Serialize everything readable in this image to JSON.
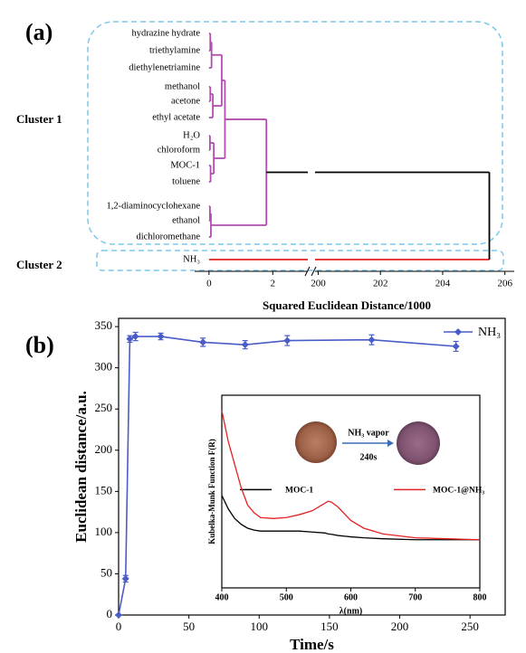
{
  "chart_data": [
    {
      "type": "dendrogram",
      "label": "(a)",
      "xlabel": "Squared Euclidean Distance/1000",
      "leaves": [
        "hydrazine hydrate",
        "triethylamine",
        "diethylenetriamine",
        "methanol",
        "acetone",
        "ethyl acetate",
        "H₂O",
        "chloroform",
        "MOC-1",
        "toluene",
        "1,2-diaminocyclohexane",
        "ethanol",
        "dichloromethane",
        "NH₃"
      ],
      "leaf_colors": [
        "#b04fb0",
        "#b04fb0",
        "#b04fb0",
        "#b04fb0",
        "#b04fb0",
        "#b04fb0",
        "#b04fb0",
        "#b04fb0",
        "#b04fb0",
        "#b04fb0",
        "#b04fb0",
        "#b04fb0",
        "#b04fb0",
        "#e52222"
      ],
      "clusters": [
        "Cluster 1",
        "Cluster 2"
      ],
      "merges": [
        {
          "pair": [
            0,
            1
          ],
          "distance": 0.04,
          "color": "#b04fb0"
        },
        {
          "pair": [
            14,
            2
          ],
          "distance": 0.08,
          "color": "#b04fb0"
        },
        {
          "pair": [
            3,
            4
          ],
          "distance": 0.04,
          "color": "#b04fb0"
        },
        {
          "pair": [
            16,
            5
          ],
          "distance": 0.12,
          "color": "#b04fb0"
        },
        {
          "pair": [
            15,
            17
          ],
          "distance": 0.4,
          "color": "#b04fb0"
        },
        {
          "pair": [
            6,
            7
          ],
          "distance": 0.03,
          "color": "#b04fb0"
        },
        {
          "pair": [
            8,
            9
          ],
          "distance": 0.05,
          "color": "#b04fb0"
        },
        {
          "pair": [
            19,
            20
          ],
          "distance": 0.15,
          "color": "#b04fb0"
        },
        {
          "pair": [
            18,
            21
          ],
          "distance": 0.5,
          "color": "#b04fb0"
        },
        {
          "pair": [
            10,
            11
          ],
          "distance": 0.03,
          "color": "#b04fb0"
        },
        {
          "pair": [
            23,
            12
          ],
          "distance": 0.06,
          "color": "#b04fb0"
        },
        {
          "pair": [
            22,
            24
          ],
          "distance": 1.8,
          "color": "#b04fb0"
        },
        {
          "pair": [
            25,
            13
          ],
          "distance": 205.5,
          "color": "#000000"
        }
      ],
      "xlim": [
        -0.45,
        206.3
      ],
      "xbreak": [
        3.1,
        199.9
      ],
      "xticks": [
        0,
        2,
        200,
        202,
        204,
        206
      ]
    },
    {
      "type": "line",
      "label": "(b)",
      "xlabel": "Time/s",
      "ylabel": "Euclidean distance/a.u.",
      "x": [
        0,
        5,
        8,
        12,
        30,
        60,
        90,
        120,
        180,
        240
      ],
      "series": [
        {
          "name": "NH₃",
          "color": "#4a5cc7",
          "values": [
            0,
            44,
            335,
            338,
            338,
            331,
            328,
            333,
            334,
            326
          ],
          "errors": [
            0,
            4,
            4,
            5,
            4,
            5,
            5,
            6,
            6,
            6
          ]
        }
      ],
      "markers": "diamond",
      "legend": "upper right",
      "xlim": [
        0,
        275
      ],
      "ylim": [
        0,
        360
      ],
      "xticks": [
        0,
        50,
        100,
        150,
        200,
        250
      ],
      "yticks": [
        0,
        50,
        100,
        150,
        200,
        250,
        300,
        350
      ]
    },
    {
      "type": "line",
      "xlabel": "λ(nm)",
      "ylabel": "Kubelka-Munk Function F(R)",
      "x": [
        400,
        410,
        420,
        430,
        440,
        450,
        460,
        480,
        500,
        520,
        540,
        560,
        565,
        570,
        580,
        600,
        620,
        650,
        700,
        750,
        800
      ],
      "series": [
        {
          "name": "MOC-1",
          "color": "#000000",
          "values": [
            0.48,
            0.41,
            0.36,
            0.33,
            0.31,
            0.3,
            0.295,
            0.295,
            0.295,
            0.295,
            0.29,
            0.285,
            0.28,
            0.278,
            0.272,
            0.265,
            0.26,
            0.255,
            0.25,
            0.25,
            0.25
          ]
        },
        {
          "name": "MOC-1@NH₃",
          "color": "#e52222",
          "values": [
            0.92,
            0.76,
            0.64,
            0.52,
            0.43,
            0.39,
            0.365,
            0.36,
            0.365,
            0.38,
            0.4,
            0.44,
            0.45,
            0.445,
            0.42,
            0.35,
            0.31,
            0.28,
            0.26,
            0.255,
            0.25
          ]
        }
      ],
      "annotations": [
        "NH₃ vapor",
        "240s"
      ],
      "legend": "center",
      "xlim": [
        400,
        800
      ],
      "ylim": [
        0,
        1
      ],
      "xticks": [
        400,
        500,
        600,
        700,
        800
      ]
    }
  ]
}
